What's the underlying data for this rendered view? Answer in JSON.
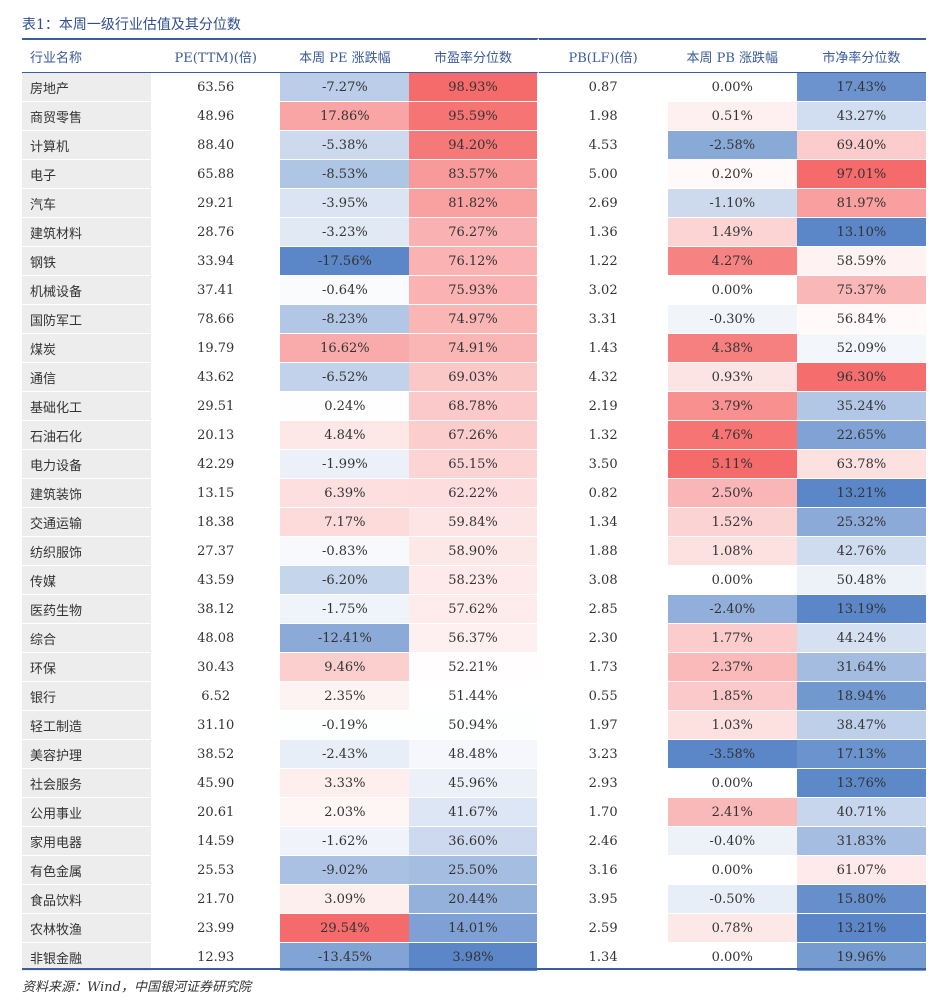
{
  "title": "表1：本周一级行业估值及其分位数",
  "columns": [
    "行业名称",
    "PE(TTM)(倍)",
    "本周 PE 涨跌幅",
    "市盈率分位数",
    "PB(LF)(倍)",
    "本周 PB 涨跌幅",
    "市净率分位数"
  ],
  "rows": [
    [
      "房地产",
      "63.56",
      "-7.27%",
      "98.93%",
      "0.87",
      "0.00%",
      "17.43%"
    ],
    [
      "商贸零售",
      "48.96",
      "17.86%",
      "95.59%",
      "1.98",
      "0.51%",
      "43.27%"
    ],
    [
      "计算机",
      "88.40",
      "-5.38%",
      "94.20%",
      "4.53",
      "-2.58%",
      "69.40%"
    ],
    [
      "电子",
      "65.88",
      "-8.53%",
      "83.57%",
      "5.00",
      "0.20%",
      "97.01%"
    ],
    [
      "汽车",
      "29.21",
      "-3.95%",
      "81.82%",
      "2.69",
      "-1.10%",
      "81.97%"
    ],
    [
      "建筑材料",
      "28.76",
      "-3.23%",
      "76.27%",
      "1.36",
      "1.49%",
      "13.10%"
    ],
    [
      "钢铁",
      "33.94",
      "-17.56%",
      "76.12%",
      "1.22",
      "4.27%",
      "58.59%"
    ],
    [
      "机械设备",
      "37.41",
      "-0.64%",
      "75.93%",
      "3.02",
      "0.00%",
      "75.37%"
    ],
    [
      "国防军工",
      "78.66",
      "-8.23%",
      "74.97%",
      "3.31",
      "-0.30%",
      "56.84%"
    ],
    [
      "煤炭",
      "19.79",
      "16.62%",
      "74.91%",
      "1.43",
      "4.38%",
      "52.09%"
    ],
    [
      "通信",
      "43.62",
      "-6.52%",
      "69.03%",
      "4.32",
      "0.93%",
      "96.30%"
    ],
    [
      "基础化工",
      "29.51",
      "0.24%",
      "68.78%",
      "2.19",
      "3.79%",
      "35.24%"
    ],
    [
      "石油石化",
      "20.13",
      "4.84%",
      "67.26%",
      "1.32",
      "4.76%",
      "22.65%"
    ],
    [
      "电力设备",
      "42.29",
      "-1.99%",
      "65.15%",
      "3.50",
      "5.11%",
      "63.78%"
    ],
    [
      "建筑装饰",
      "13.15",
      "6.39%",
      "62.22%",
      "0.82",
      "2.50%",
      "13.21%"
    ],
    [
      "交通运输",
      "18.38",
      "7.17%",
      "59.84%",
      "1.34",
      "1.52%",
      "25.32%"
    ],
    [
      "纺织服饰",
      "27.37",
      "-0.83%",
      "58.90%",
      "1.88",
      "1.08%",
      "42.76%"
    ],
    [
      "传媒",
      "43.59",
      "-6.20%",
      "58.23%",
      "3.08",
      "0.00%",
      "50.48%"
    ],
    [
      "医药生物",
      "38.12",
      "-1.75%",
      "57.62%",
      "2.85",
      "-2.40%",
      "13.19%"
    ],
    [
      "综合",
      "48.08",
      "-12.41%",
      "56.37%",
      "2.30",
      "1.77%",
      "44.24%"
    ],
    [
      "环保",
      "30.43",
      "9.46%",
      "52.21%",
      "1.73",
      "2.37%",
      "31.64%"
    ],
    [
      "银行",
      "6.52",
      "2.35%",
      "51.44%",
      "0.55",
      "1.85%",
      "18.94%"
    ],
    [
      "轻工制造",
      "31.10",
      "-0.19%",
      "50.94%",
      "1.97",
      "1.03%",
      "38.47%"
    ],
    [
      "美容护理",
      "38.52",
      "-2.43%",
      "48.48%",
      "3.23",
      "-3.58%",
      "17.13%"
    ],
    [
      "社会服务",
      "45.90",
      "3.33%",
      "45.96%",
      "2.93",
      "0.00%",
      "13.76%"
    ],
    [
      "公用事业",
      "20.61",
      "2.03%",
      "41.67%",
      "1.70",
      "2.41%",
      "40.71%"
    ],
    [
      "家用电器",
      "14.59",
      "-1.62%",
      "36.60%",
      "2.46",
      "-0.40%",
      "31.83%"
    ],
    [
      "有色金属",
      "25.53",
      "-9.02%",
      "25.50%",
      "3.16",
      "0.00%",
      "61.07%"
    ],
    [
      "食品饮料",
      "21.70",
      "3.09%",
      "20.44%",
      "3.95",
      "-0.50%",
      "15.80%"
    ],
    [
      "农林牧渔",
      "23.99",
      "29.54%",
      "14.01%",
      "2.59",
      "0.78%",
      "13.21%"
    ],
    [
      "非银金融",
      "12.93",
      "-13.45%",
      "3.98%",
      "1.34",
      "0.00%",
      "19.96%"
    ]
  ],
  "colors": {
    "red": "#f56a6a",
    "blue": "#5b87c8",
    "white": "#ffffff"
  },
  "source": "资料来源：Wind，中国银河证券研究院"
}
